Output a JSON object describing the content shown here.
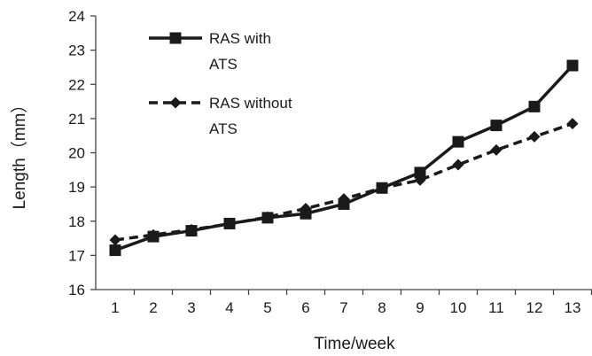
{
  "chart_data": {
    "type": "line",
    "title": "",
    "xlabel": "Time/week",
    "ylabel": "Length（mm）",
    "x": [
      1,
      2,
      3,
      4,
      5,
      6,
      7,
      8,
      9,
      10,
      11,
      12,
      13
    ],
    "ylim": [
      16,
      24
    ],
    "yticks": [
      16,
      17,
      18,
      19,
      20,
      21,
      22,
      23,
      24
    ],
    "grid": false,
    "legend_position": "top-left",
    "series": [
      {
        "name": "RAS with ATS",
        "legend_lines": [
          "RAS with",
          "ATS"
        ],
        "line_style": "solid",
        "marker": "square",
        "color": "#1a1a1a",
        "values": [
          17.15,
          17.55,
          17.72,
          17.93,
          18.1,
          18.22,
          18.5,
          18.97,
          19.42,
          20.32,
          20.8,
          21.35,
          22.55
        ]
      },
      {
        "name": "RAS without ATS",
        "legend_lines": [
          "RAS without",
          "ATS"
        ],
        "line_style": "dashed",
        "marker": "diamond",
        "color": "#1a1a1a",
        "values": [
          17.45,
          17.6,
          17.75,
          17.92,
          18.12,
          18.37,
          18.65,
          18.97,
          19.2,
          19.65,
          20.08,
          20.47,
          20.85
        ]
      }
    ]
  }
}
